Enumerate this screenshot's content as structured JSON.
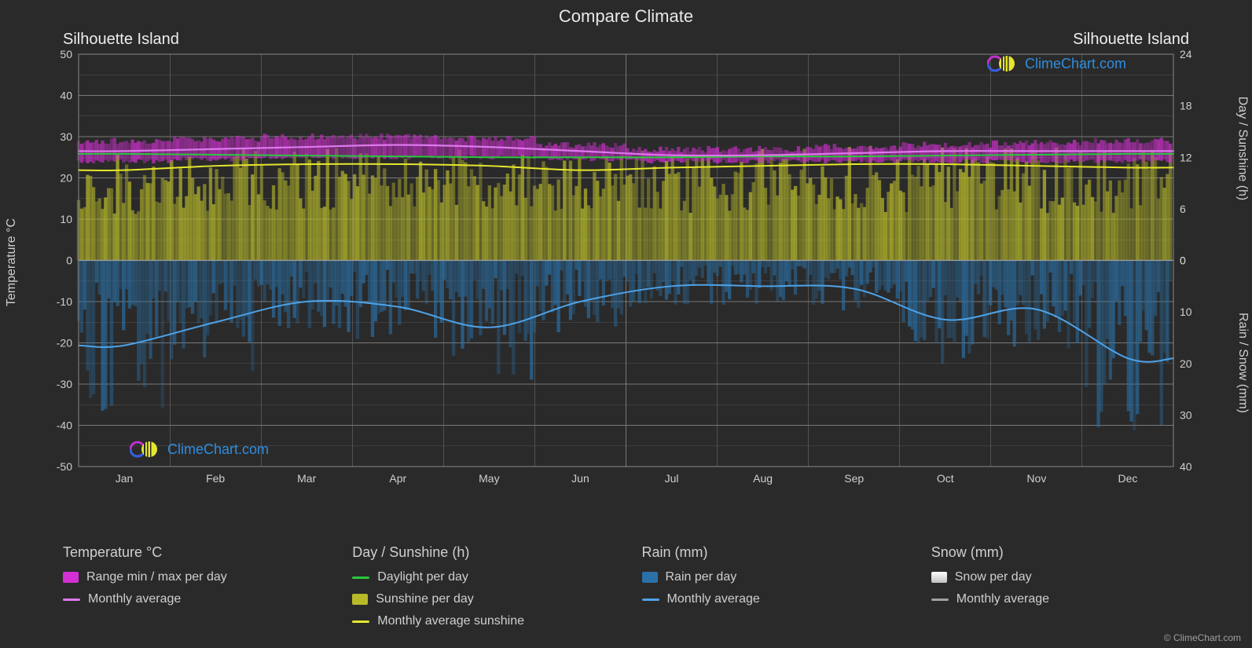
{
  "title": "Compare Climate",
  "location_left": "Silhouette Island",
  "location_right": "Silhouette Island",
  "axis": {
    "left_title": "Temperature °C",
    "right_top_title": "Day / Sunshine (h)",
    "right_bottom_title": "Rain / Snow (mm)",
    "left": {
      "min": -50,
      "max": 50,
      "step": 10
    },
    "right_top": {
      "min": 0,
      "max": 24,
      "step": 6
    },
    "right_bottom": {
      "min": 0,
      "max": 40,
      "step": 10
    },
    "months": [
      "Jan",
      "Feb",
      "Mar",
      "Apr",
      "May",
      "Jun",
      "Jul",
      "Aug",
      "Sep",
      "Oct",
      "Nov",
      "Dec"
    ]
  },
  "colors": {
    "background": "#2a2a2a",
    "grid": "#787878",
    "temp_range": "#d42fd4",
    "temp_avg": "#de78ed",
    "daylight": "#28c83c",
    "sunshine_fill": "#b8ba2a",
    "sunshine_line": "#e6e62e",
    "rain_fill": "#2a71a8",
    "rain_line": "#4ea2e8",
    "snow_fill": "#c0c0c0",
    "snow_line": "#a0a0a0",
    "watermark_text": "#2f8de0"
  },
  "data": {
    "temp_avg_c": [
      26.5,
      27.0,
      27.5,
      28.0,
      27.5,
      26.5,
      25.5,
      25.5,
      26.0,
      26.5,
      26.5,
      26.5
    ],
    "temp_range_hi_c": [
      29.0,
      29.5,
      30.0,
      30.0,
      29.5,
      28.0,
      27.0,
      27.0,
      27.5,
      28.0,
      28.5,
      29.0
    ],
    "temp_range_lo_c": [
      24.0,
      24.5,
      25.0,
      25.0,
      25.0,
      24.5,
      24.0,
      24.0,
      24.0,
      24.0,
      24.0,
      24.0
    ],
    "daylight_h": [
      12.4,
      12.3,
      12.2,
      12.1,
      12.0,
      12.0,
      12.0,
      12.1,
      12.1,
      12.2,
      12.3,
      12.4
    ],
    "sunshine_h": [
      10.5,
      11.0,
      11.2,
      11.2,
      11.0,
      10.5,
      10.8,
      11.0,
      11.2,
      11.2,
      11.0,
      10.8
    ],
    "rain_mm": [
      16.5,
      12.0,
      8.0,
      9.0,
      13.0,
      8.0,
      5.0,
      5.0,
      5.5,
      11.5,
      9.5,
      19.0
    ],
    "snow_mm": [
      0,
      0,
      0,
      0,
      0,
      0,
      0,
      0,
      0,
      0,
      0,
      0
    ]
  },
  "fonts": {
    "title_pt": 22,
    "axis_label_pt": 16,
    "tick_pt": 14,
    "legend_title_pt": 18,
    "legend_item_pt": 16
  },
  "legend": {
    "temp": {
      "title": "Temperature °C",
      "range_label": "Range min / max per day",
      "avg_label": "Monthly average"
    },
    "day": {
      "title": "Day / Sunshine (h)",
      "daylight_label": "Daylight per day",
      "sunshine_label": "Sunshine per day",
      "sunshine_avg_label": "Monthly average sunshine"
    },
    "rain": {
      "title": "Rain (mm)",
      "per_day_label": "Rain per day",
      "avg_label": "Monthly average"
    },
    "snow": {
      "title": "Snow (mm)",
      "per_day_label": "Snow per day",
      "avg_label": "Monthly average"
    }
  },
  "watermark_text": "ClimeChart.com",
  "copyright": "© ClimeChart.com"
}
